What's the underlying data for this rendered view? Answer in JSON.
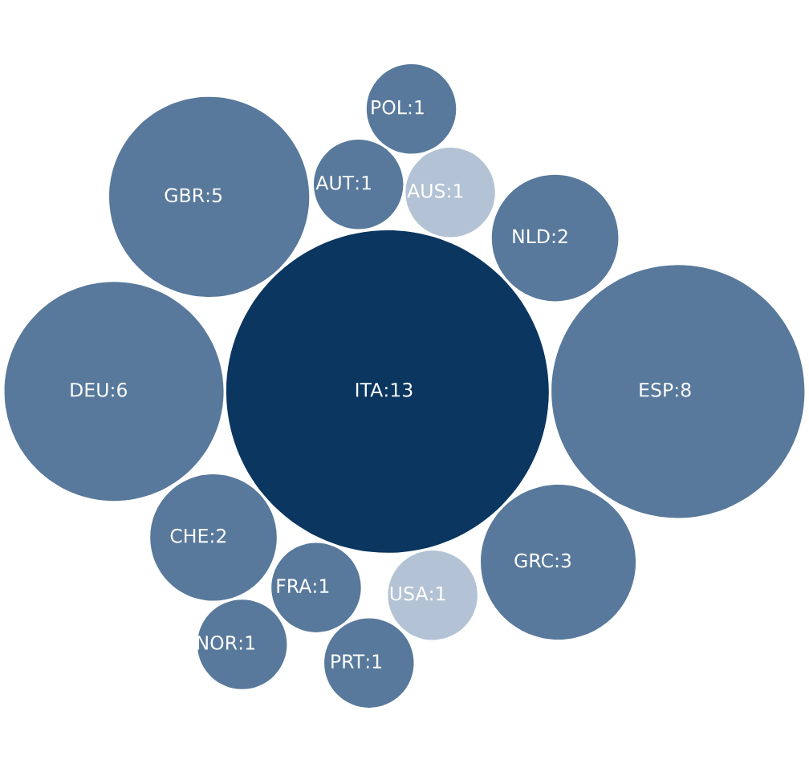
{
  "chart_data": {
    "type": "other",
    "categories": [
      "ITA",
      "ESP",
      "DEU",
      "GBR",
      "GRC",
      "CHE",
      "NLD",
      "FRA",
      "AUS",
      "USA",
      "AUT",
      "PRT",
      "POL",
      "NOR"
    ],
    "values": [
      13,
      8,
      6,
      5,
      3,
      2,
      2,
      1,
      1,
      1,
      1,
      1,
      1,
      1
    ],
    "value_labels": [
      ":13",
      ":8",
      ":6",
      ":5",
      ":3",
      ":2",
      ":2",
      ":1",
      ":1",
      ":1",
      ":1",
      ":1",
      ":1",
      ":1"
    ],
    "colors": [
      "#0b3660",
      "#58799b",
      "#58799b",
      "#58799b",
      "#58799b",
      "#58799b",
      "#58799b",
      "#58799b",
      "#b3c3d5",
      "#b3c3d5",
      "#58799b",
      "#58799b",
      "#58799b",
      "#58799b"
    ]
  }
}
